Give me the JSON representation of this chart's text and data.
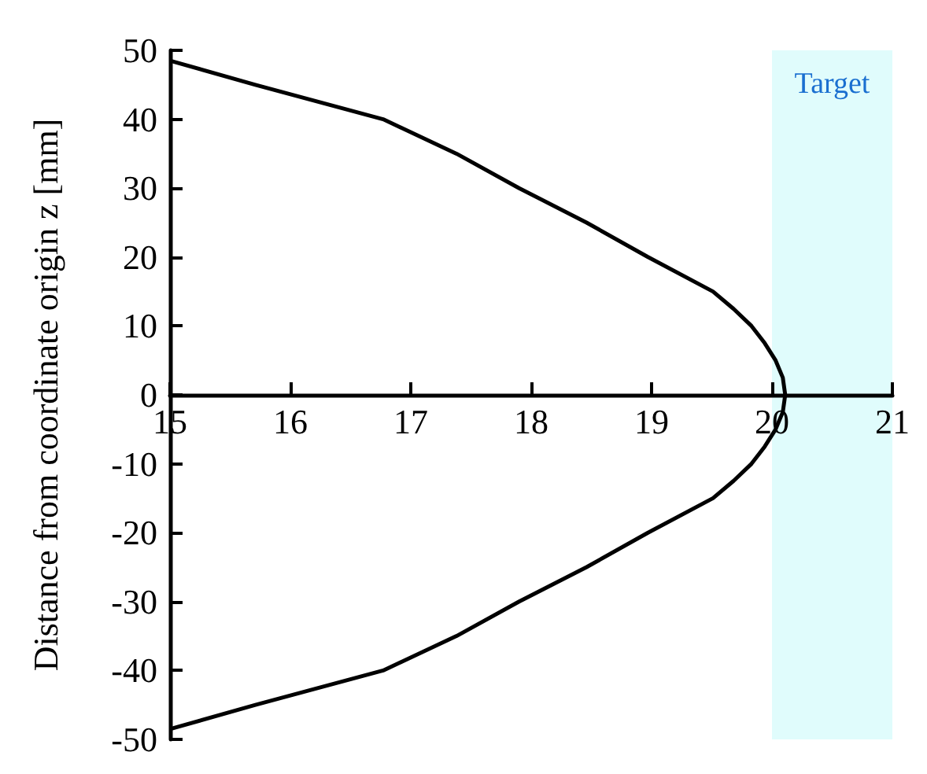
{
  "chart_data": {
    "type": "line",
    "ylabel": "Distance from coordinate origin z [mm]",
    "x": [
      15.0,
      15.71,
      16.77,
      17.38,
      17.9,
      18.46,
      18.97,
      19.51,
      19.68,
      19.83,
      19.94,
      20.03,
      20.09,
      20.11,
      20.09,
      20.03,
      19.94,
      19.83,
      19.68,
      19.51,
      18.97,
      18.46,
      17.9,
      17.38,
      16.77,
      15.71,
      15.0
    ],
    "series": [
      {
        "color": "#000000",
        "values": [
          48.5,
          45,
          40,
          35,
          30,
          25,
          20,
          15,
          12.5,
          10,
          7.5,
          5,
          2.5,
          0,
          -2.5,
          -5,
          -7.5,
          -10,
          -12.5,
          -15,
          -20,
          -25,
          -30,
          -35,
          -40,
          -45,
          -48.5
        ]
      }
    ],
    "xlim": [
      15,
      21
    ],
    "xticks": [
      15,
      16,
      17,
      18,
      19,
      20,
      21
    ],
    "ylim": [
      -50,
      50
    ],
    "yticks": [
      -50,
      -40,
      -30,
      -20,
      -10,
      0,
      10,
      20,
      30,
      40,
      50
    ],
    "bands": [
      {
        "axis": "x",
        "from": 20,
        "to": 21,
        "label": "Target",
        "color": "#e0fcfc"
      }
    ],
    "grid": false,
    "marker": "none",
    "line_style": "solid"
  }
}
